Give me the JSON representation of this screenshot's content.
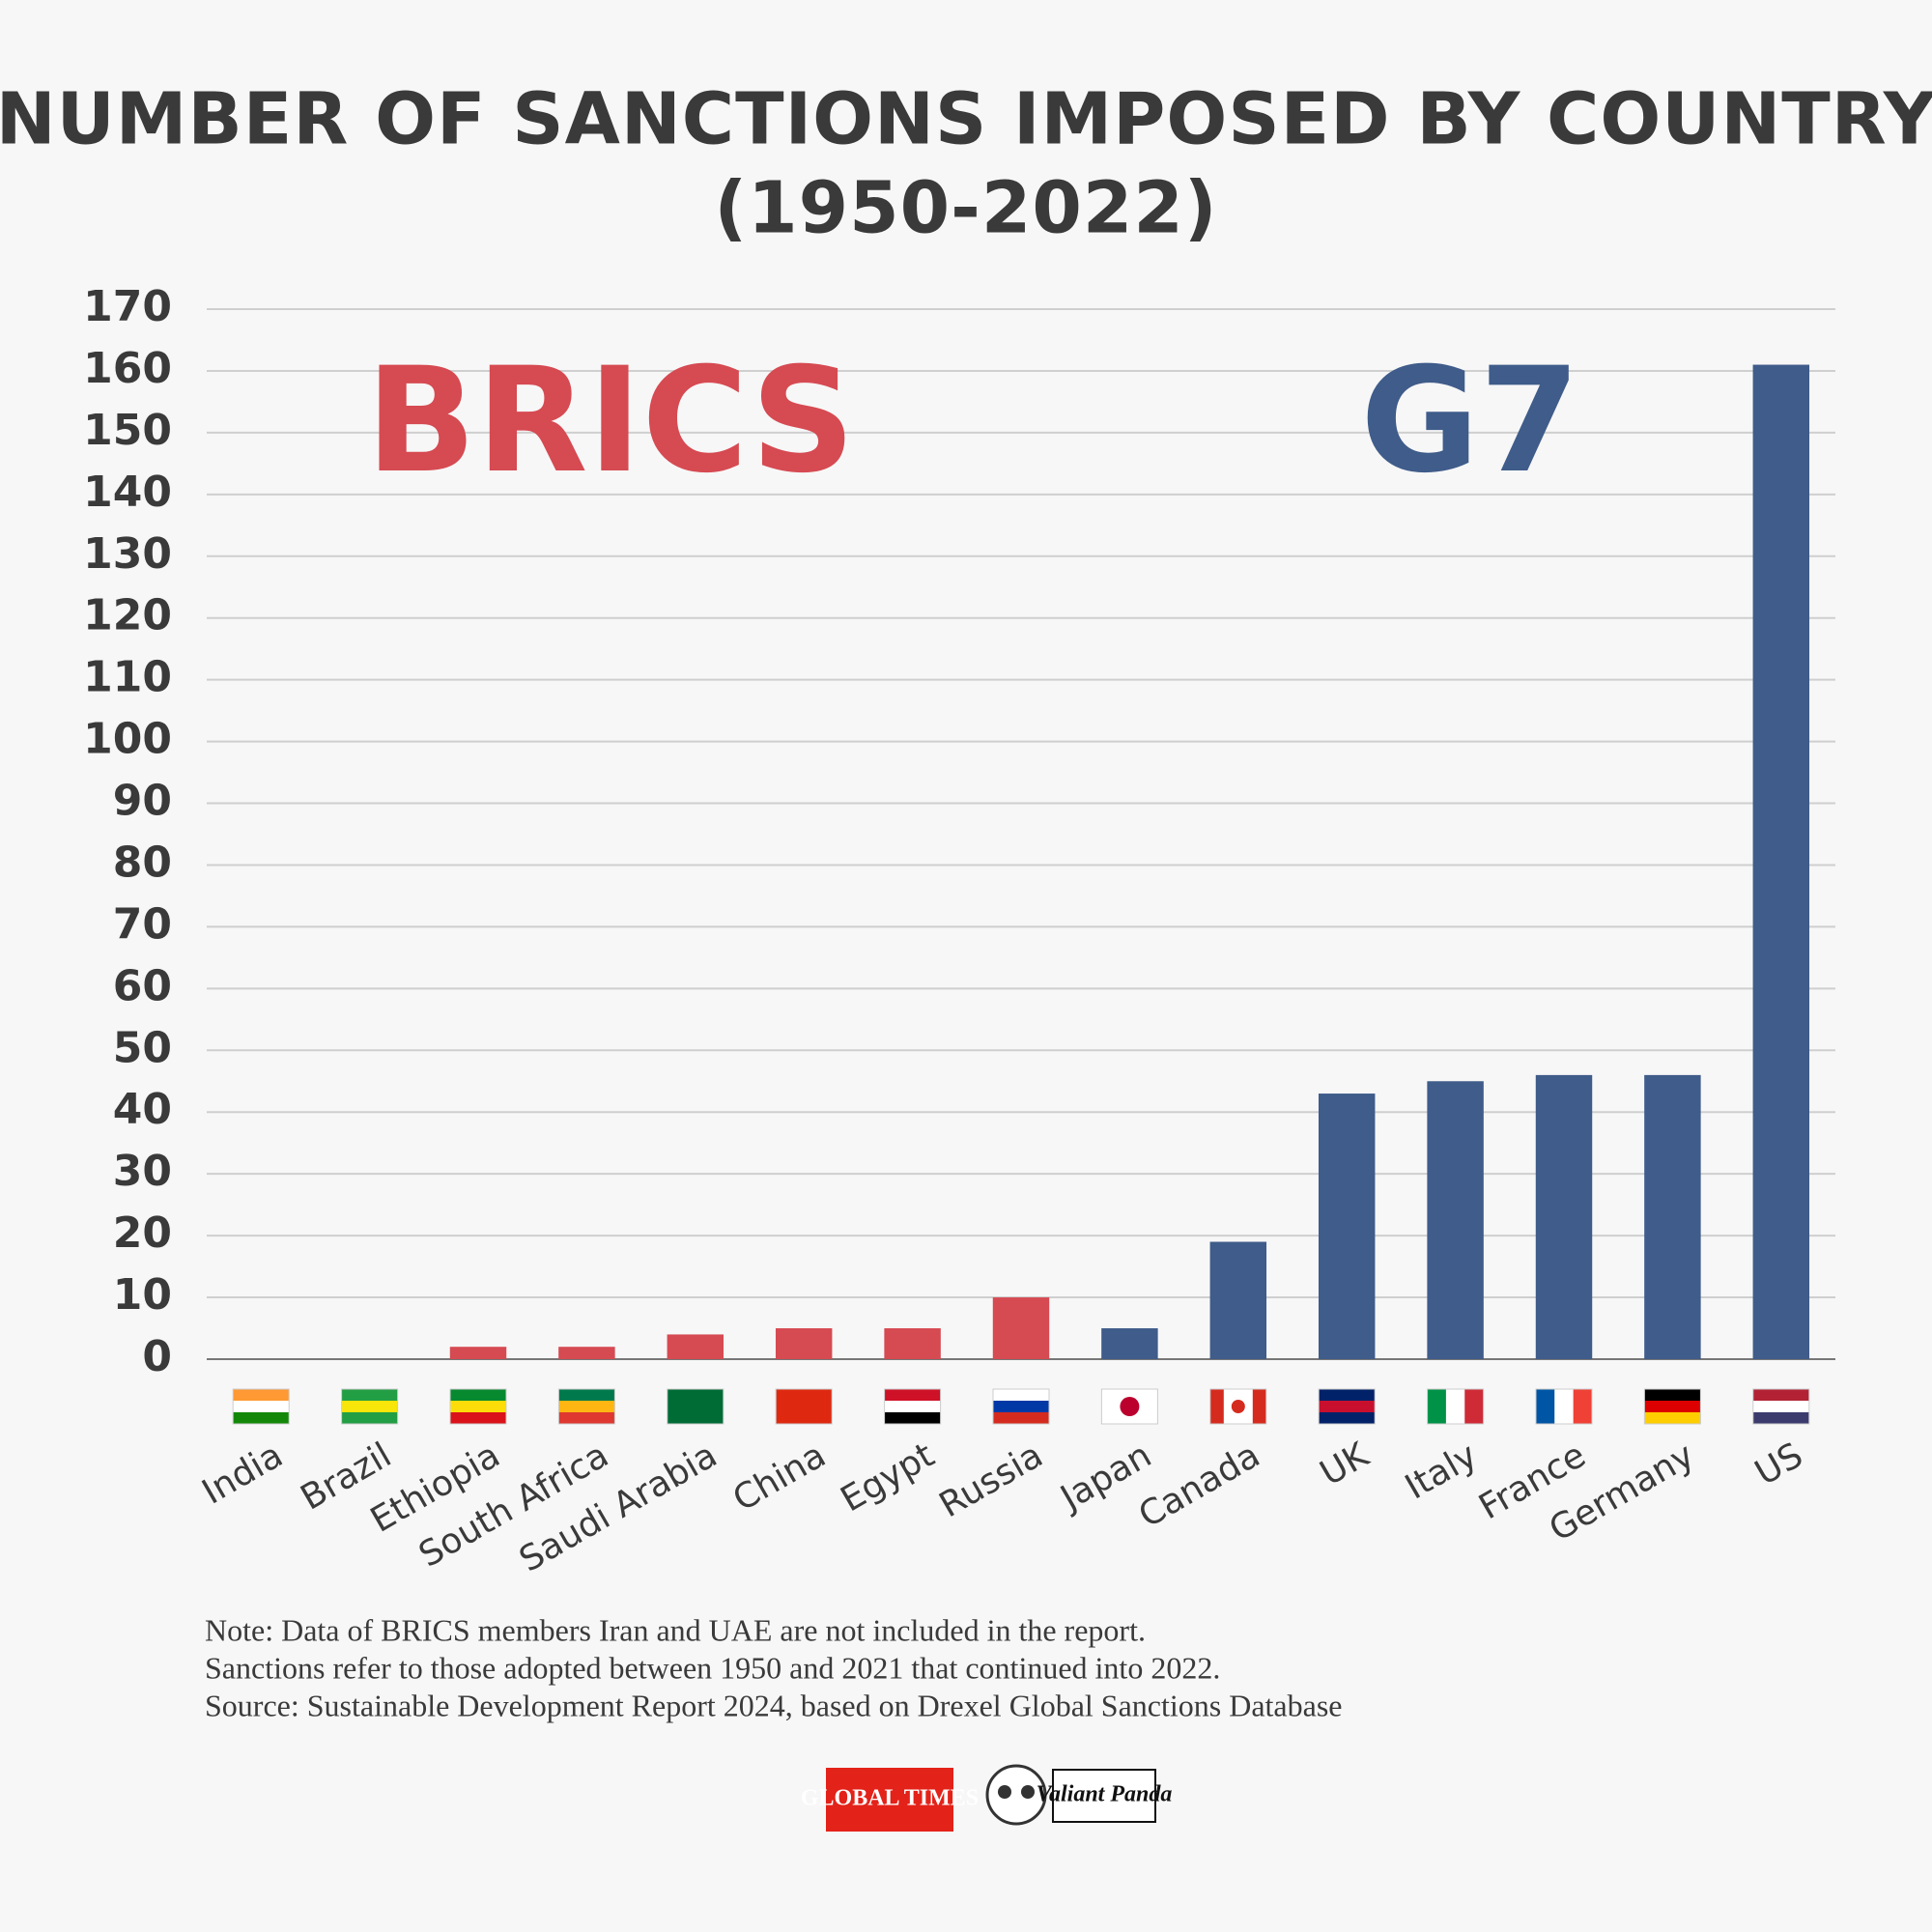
{
  "chart_data": {
    "type": "bar",
    "title": "NUMBER OF SANCTIONS IMPOSED BY COUNTRY",
    "subtitle": "(1950-2022)",
    "categories": [
      "India",
      "Brazil",
      "Ethiopia",
      "South Africa",
      "Saudi Arabia",
      "China",
      "Egypt",
      "Russia",
      "Japan",
      "Canada",
      "UK",
      "Italy",
      "France",
      "Germany",
      "US"
    ],
    "values": [
      0,
      0,
      2,
      2,
      4,
      5,
      5,
      10,
      5,
      19,
      43,
      45,
      46,
      46,
      161
    ],
    "groups": [
      {
        "name": "BRICS",
        "color": "#d64a52",
        "count": 8
      },
      {
        "name": "G7",
        "color": "#3f5c8a",
        "count": 7
      }
    ],
    "ylim": [
      0,
      170
    ],
    "yticks": [
      0,
      10,
      20,
      30,
      40,
      50,
      60,
      70,
      80,
      90,
      100,
      110,
      120,
      130,
      140,
      150,
      160,
      170
    ],
    "grid": true
  },
  "notes": [
    "Note: Data of BRICS members Iran and UAE are not included in the report.",
    "Sanctions refer to those adopted between 1950 and 2021 that continued into 2022.",
    "Source: Sustainable Development Report 2024, based on Drexel Global Sanctions Database"
  ],
  "logos": [
    "GLOBAL TIMES",
    "Valiant Panda"
  ]
}
